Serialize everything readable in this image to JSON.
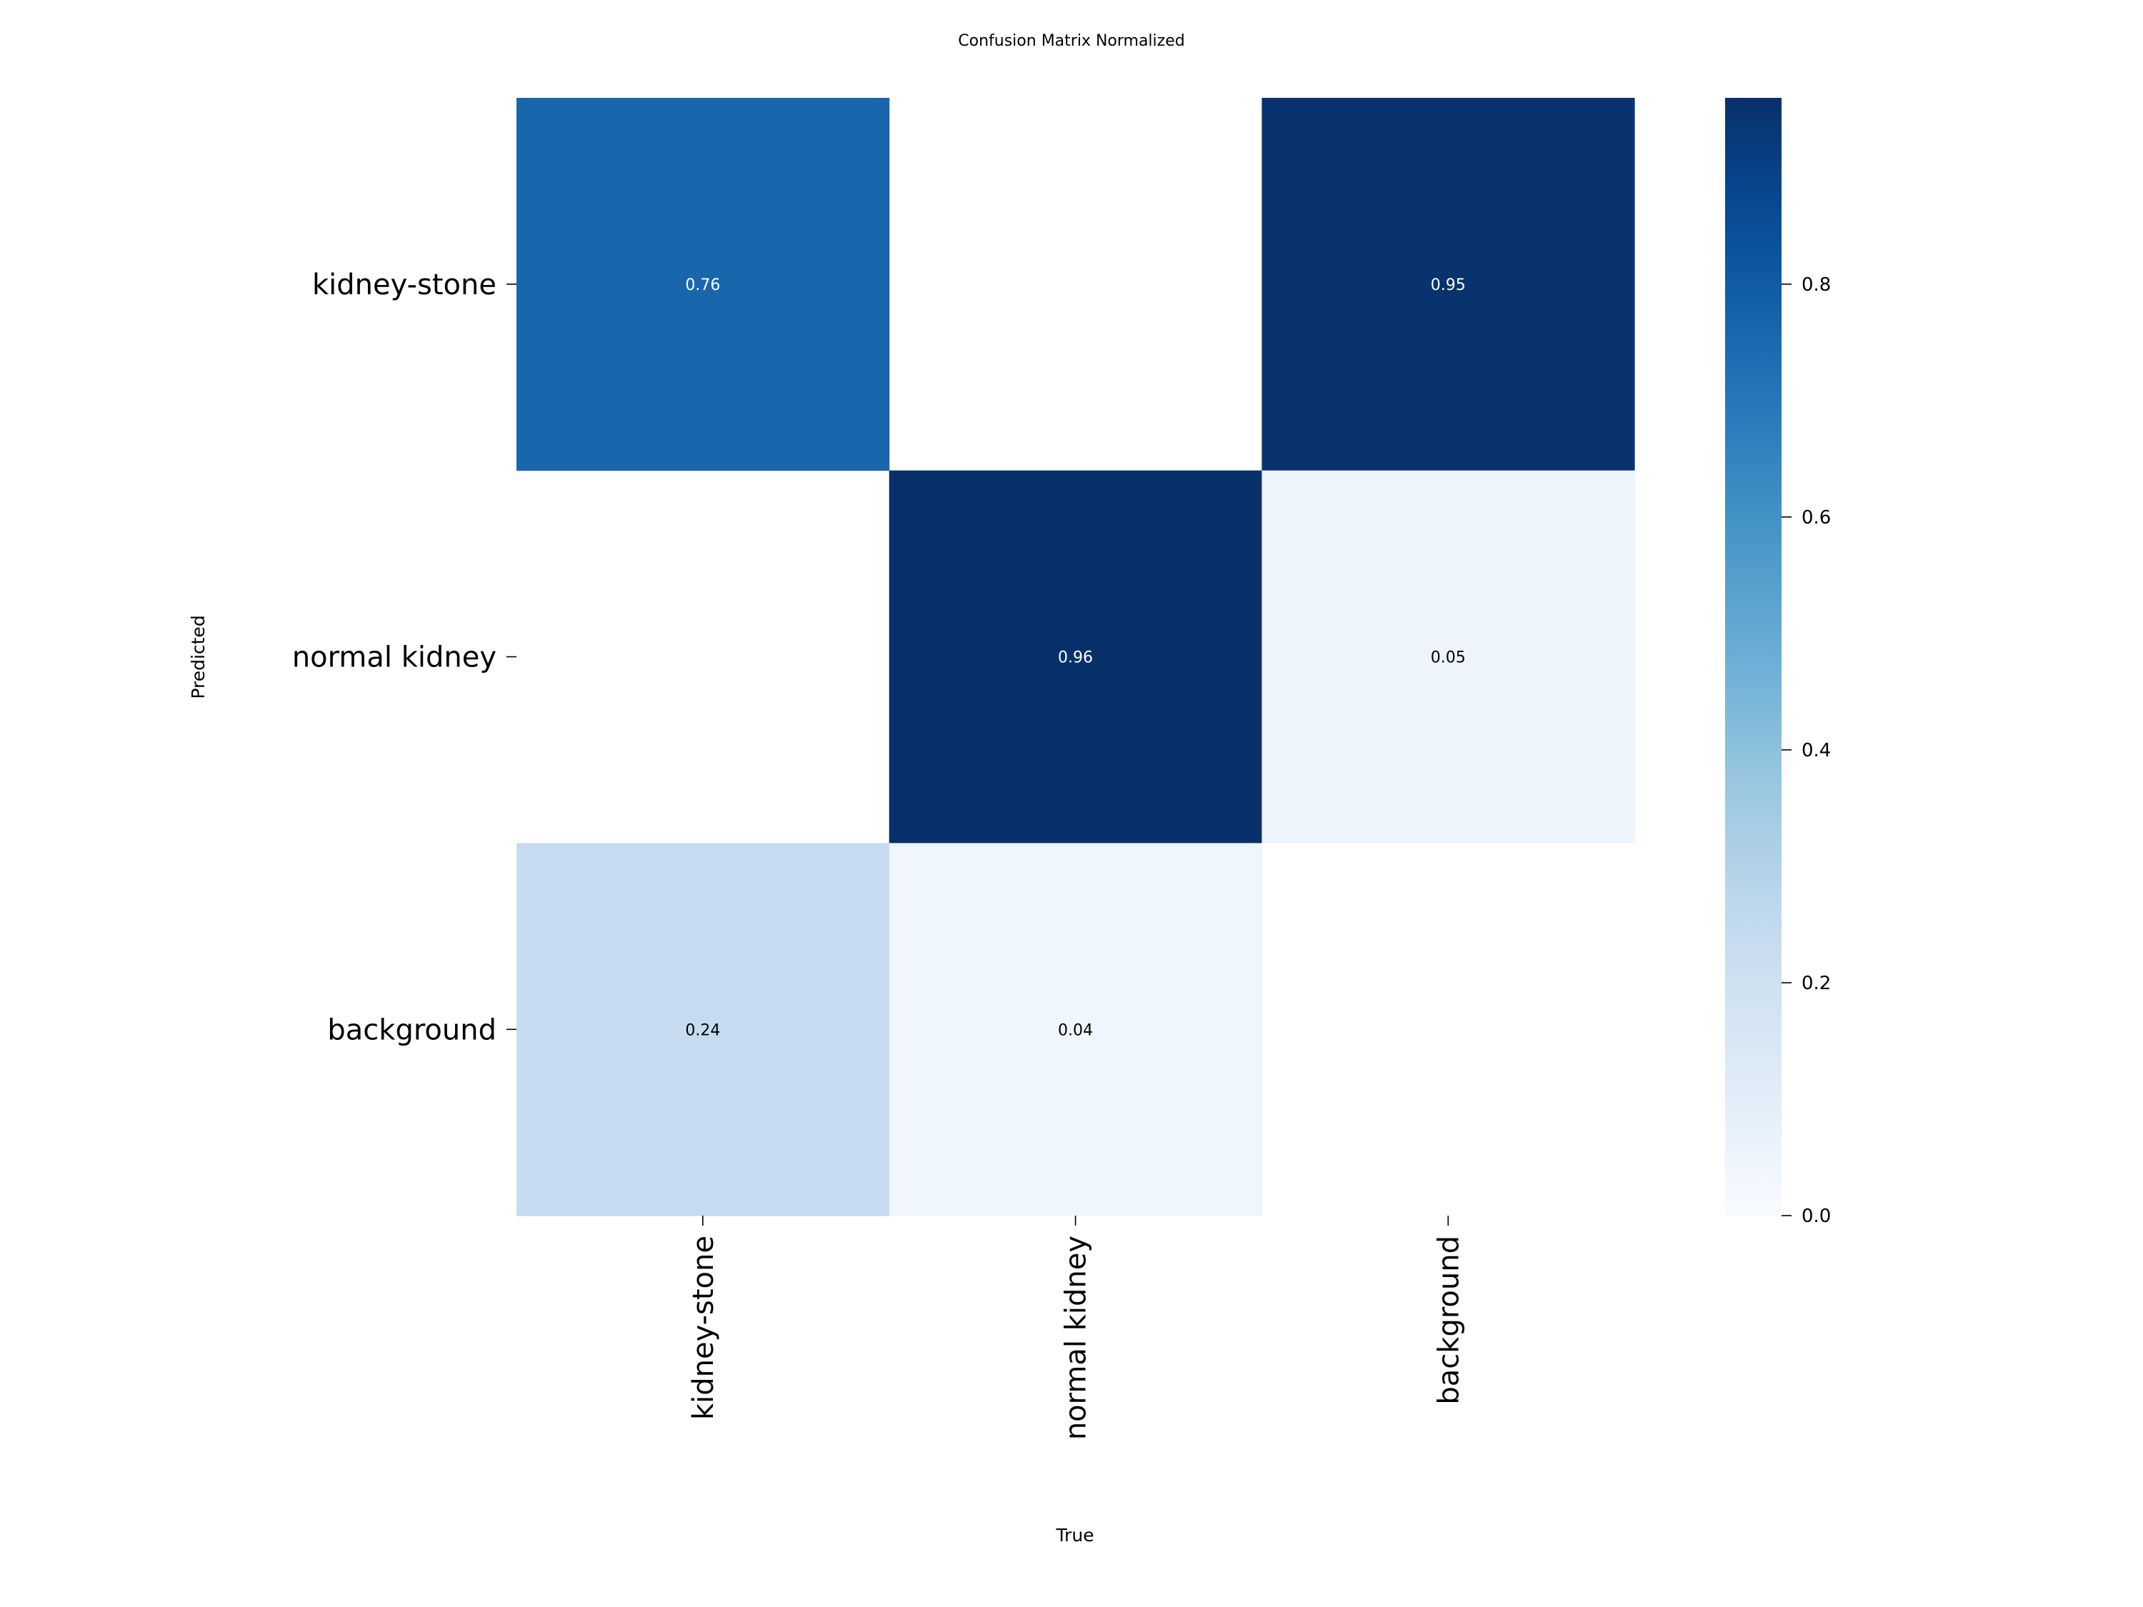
{
  "chart_data": {
    "type": "heatmap",
    "title": "Confusion Matrix Normalized",
    "xlabel": "True",
    "ylabel": "Predicted",
    "x_categories": [
      "kidney-stone",
      "normal kidney",
      "background"
    ],
    "y_categories": [
      "kidney-stone",
      "normal kidney",
      "background"
    ],
    "values": [
      [
        0.76,
        null,
        0.95
      ],
      [
        null,
        0.96,
        0.05
      ],
      [
        0.24,
        0.04,
        null
      ]
    ],
    "value_labels": [
      [
        "0.76",
        "",
        "0.95"
      ],
      [
        "",
        "0.96",
        "0.05"
      ],
      [
        "0.24",
        "0.04",
        ""
      ]
    ],
    "colormap": "Blues",
    "colorbar": {
      "range": [
        0.0,
        0.96
      ],
      "ticks": [
        0.0,
        0.2,
        0.4,
        0.6,
        0.8
      ],
      "tick_labels": [
        "0.0",
        "0.2",
        "0.4",
        "0.6",
        "0.8"
      ]
    }
  }
}
